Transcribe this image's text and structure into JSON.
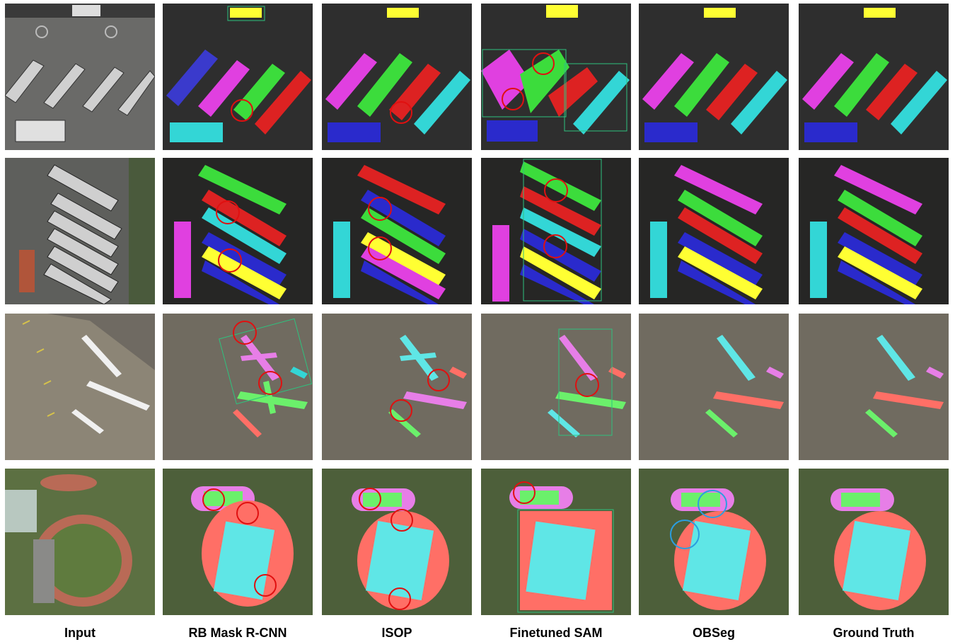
{
  "columns": [
    {
      "label": "Input"
    },
    {
      "label": "RB Mask R-CNN"
    },
    {
      "label": "ISOP"
    },
    {
      "label": "Finetuned SAM"
    },
    {
      "label": "OBSeg"
    },
    {
      "label": "Ground Truth"
    }
  ],
  "rows": [
    {
      "scene": "parking lot with trucks and trailers"
    },
    {
      "scene": "semi-trucks parked in angled rows"
    },
    {
      "scene": "airport apron with airplanes"
    },
    {
      "scene": "stadium with running track"
    }
  ],
  "colors": {
    "yellow": "#ffff33",
    "blue": "#2a2acc",
    "magenta": "#e040e0",
    "green": "#3cdc3c",
    "red": "#dd2222",
    "cyan": "#33d6d6",
    "salmon": "#ff6655",
    "box": "#2ec27e",
    "error_circle": "#e01010",
    "obseg_circle": "#2a9ee0"
  }
}
